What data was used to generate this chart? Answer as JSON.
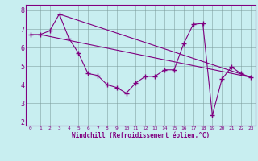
{
  "xlabel": "Windchill (Refroidissement éolien,°C)",
  "background_color": "#c8eef0",
  "line_color": "#800080",
  "xlim": [
    -0.5,
    23.5
  ],
  "ylim": [
    1.8,
    8.3
  ],
  "yticks": [
    2,
    3,
    4,
    5,
    6,
    7,
    8
  ],
  "xticks": [
    0,
    1,
    2,
    3,
    4,
    5,
    6,
    7,
    8,
    9,
    10,
    11,
    12,
    13,
    14,
    15,
    16,
    17,
    18,
    19,
    20,
    21,
    22,
    23
  ],
  "series": [
    {
      "x": [
        0,
        1,
        2,
        3,
        4,
        5,
        6,
        7,
        8,
        9,
        10,
        11,
        12,
        13,
        14,
        15,
        16,
        17,
        18,
        19,
        20,
        21,
        22,
        23
      ],
      "y": [
        6.7,
        6.7,
        6.9,
        7.8,
        6.5,
        5.7,
        4.6,
        4.5,
        4.0,
        3.85,
        3.55,
        4.1,
        4.45,
        4.45,
        4.8,
        4.8,
        6.2,
        7.25,
        7.3,
        2.35,
        4.3,
        4.95,
        4.6,
        4.4
      ]
    },
    {
      "x": [
        1,
        23
      ],
      "y": [
        6.7,
        4.4
      ]
    },
    {
      "x": [
        3,
        23
      ],
      "y": [
        7.8,
        4.4
      ]
    }
  ]
}
